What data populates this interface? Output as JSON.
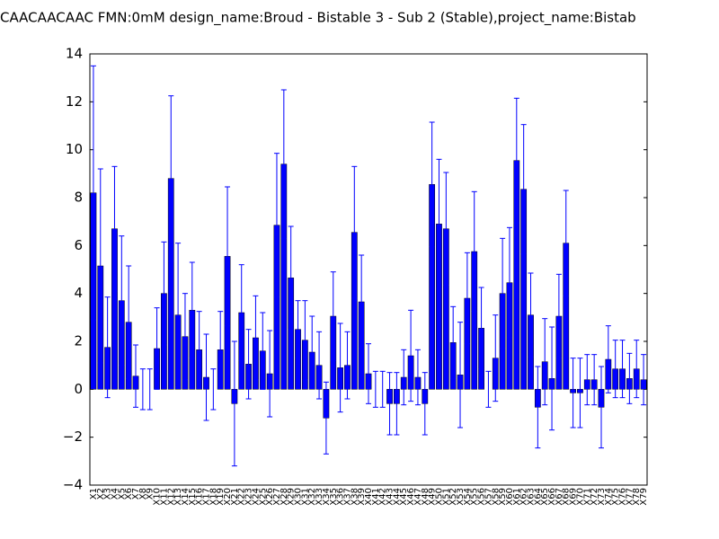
{
  "chart_data": {
    "type": "bar",
    "title": "CAACAACAAC  FMN:0mM  design_name:Broud - Bistable 3 - Sub 2 (Stable),project_name:Bistab",
    "color": "#0000ff",
    "error_color": "#0000ff",
    "categories": [
      "X1",
      "X2",
      "X3",
      "X4",
      "X5",
      "X6",
      "X7",
      "X8",
      "X9",
      "X10",
      "X11",
      "X12",
      "X13",
      "X14",
      "X15",
      "X16",
      "X17",
      "X18",
      "X19",
      "X20",
      "X21",
      "X22",
      "X23",
      "X24",
      "X25",
      "X26",
      "X27",
      "X28",
      "X29",
      "X30",
      "X31",
      "X32",
      "X33",
      "X34",
      "X35",
      "X36",
      "X37",
      "X38",
      "X39",
      "X40",
      "X41",
      "X42",
      "X43",
      "X44",
      "X45",
      "X46",
      "X47",
      "X48",
      "X49",
      "X50",
      "X51",
      "X52",
      "X53",
      "X54",
      "X55",
      "X56",
      "X57",
      "X58",
      "X59",
      "X60",
      "X61",
      "X62",
      "X63",
      "X64",
      "X65",
      "X66",
      "X67",
      "X68",
      "X69",
      "X70",
      "X71",
      "X72",
      "X73",
      "X74",
      "X75",
      "X76",
      "X77",
      "X78",
      "X79"
    ],
    "values": [
      8.2,
      5.15,
      1.75,
      6.7,
      3.7,
      2.8,
      0.55,
      0,
      0,
      1.7,
      4.0,
      8.8,
      3.1,
      2.2,
      3.3,
      1.65,
      0.5,
      0,
      1.65,
      5.55,
      -0.6,
      3.2,
      1.05,
      2.15,
      1.6,
      0.65,
      6.85,
      9.4,
      4.65,
      2.5,
      2.05,
      1.55,
      1.0,
      -1.2,
      3.05,
      0.9,
      1.0,
      6.55,
      3.65,
      0.65,
      0,
      0,
      -0.6,
      -0.6,
      0.5,
      1.4,
      0.5,
      -0.6,
      8.55,
      6.9,
      6.7,
      1.95,
      0.6,
      3.8,
      5.75,
      2.55,
      0,
      1.3,
      4.0,
      4.45,
      9.55,
      8.35,
      3.1,
      -0.75,
      1.15,
      0.45,
      3.05,
      6.1,
      -0.15,
      -0.15,
      0.4,
      0.4,
      -0.75,
      1.25,
      0.85,
      0.85,
      0.45,
      0.85,
      0.4
    ],
    "errors": [
      5.3,
      4.05,
      2.1,
      2.6,
      2.7,
      2.35,
      1.3,
      0.85,
      0.85,
      1.7,
      2.15,
      3.45,
      3.0,
      1.8,
      2.0,
      1.6,
      1.8,
      0.85,
      1.6,
      2.9,
      2.6,
      2.0,
      1.45,
      1.75,
      1.6,
      1.8,
      3.0,
      3.1,
      2.15,
      1.2,
      1.65,
      1.5,
      1.4,
      1.5,
      1.85,
      1.85,
      1.4,
      2.75,
      1.95,
      1.25,
      0.75,
      0.75,
      1.3,
      1.3,
      1.15,
      1.9,
      1.15,
      1.3,
      2.6,
      2.7,
      2.35,
      1.5,
      2.2,
      1.9,
      2.5,
      1.7,
      0.75,
      1.8,
      2.3,
      2.3,
      2.6,
      2.7,
      1.75,
      1.7,
      1.8,
      2.15,
      1.75,
      2.2,
      1.45,
      1.45,
      1.05,
      1.05,
      1.7,
      1.4,
      1.2,
      1.2,
      1.05,
      1.2,
      1.05
    ],
    "ylim": [
      -4,
      14
    ],
    "yticks": [
      {
        "value": -4,
        "label": "−4"
      },
      {
        "value": -2,
        "label": "−2"
      },
      0,
      2,
      4,
      6,
      8,
      10,
      12,
      14
    ],
    "grid": false
  }
}
